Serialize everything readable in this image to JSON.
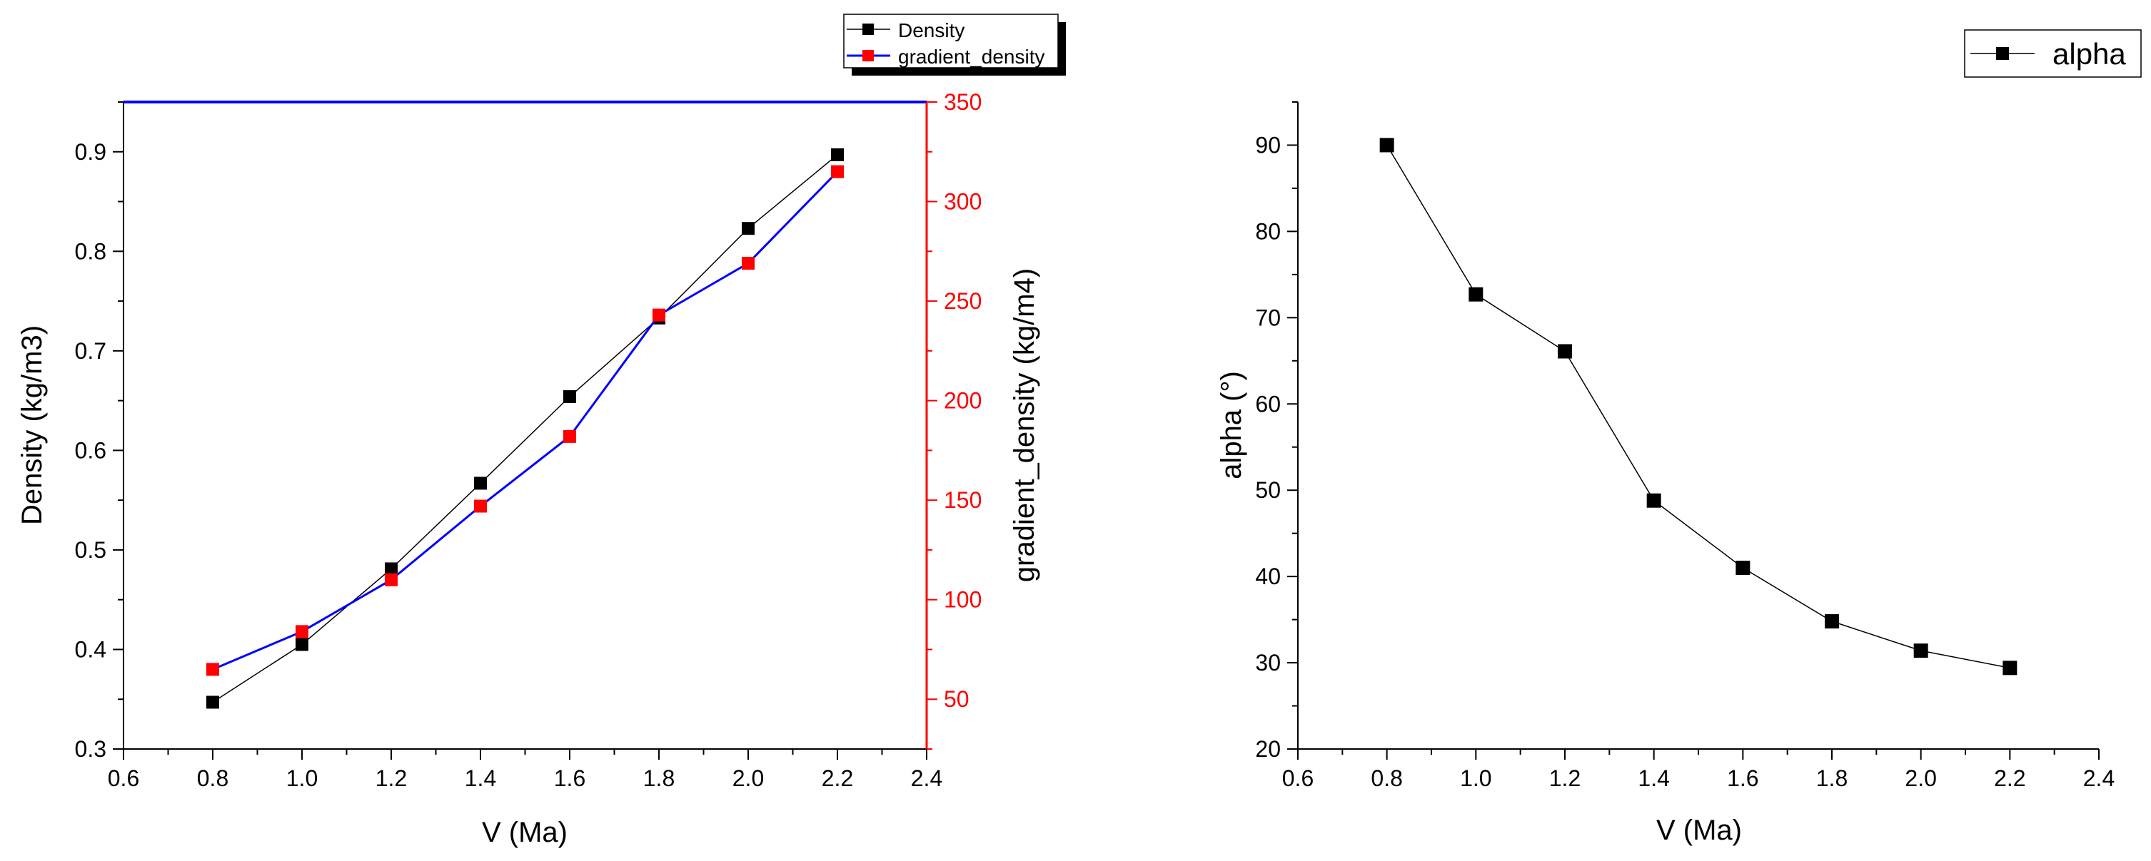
{
  "colors": {
    "black": "#000000",
    "red": "#ff0000",
    "blue": "#0000ff",
    "legend_shadow": "#000000"
  },
  "chart_data": [
    {
      "type": "line",
      "title": "",
      "xlabel": "V (Ma)",
      "ylabel": "Density (kg/m3)",
      "y2label": "gradient_density (kg/m4)",
      "xlim": [
        0.6,
        2.4
      ],
      "ylim": [
        0.3,
        0.95
      ],
      "y2lim": [
        25,
        350
      ],
      "xticks": [
        "0.6",
        "0.8",
        "1.0",
        "1.2",
        "1.4",
        "1.6",
        "1.8",
        "2.0",
        "2.2",
        "2.4"
      ],
      "yticks": [
        "0.3",
        "0.4",
        "0.5",
        "0.6",
        "0.7",
        "0.8",
        "0.9"
      ],
      "y2ticks": [
        "50",
        "100",
        "150",
        "200",
        "250",
        "300",
        "350"
      ],
      "legend_position": "top-right",
      "series": [
        {
          "name": "Density",
          "axis": "left",
          "x": [
            0.8,
            1.0,
            1.2,
            1.4,
            1.6,
            1.8,
            2.0,
            2.2
          ],
          "values": [
            0.347,
            0.405,
            0.481,
            0.567,
            0.654,
            0.733,
            0.823,
            0.897
          ]
        },
        {
          "name": "gradient_density",
          "axis": "right",
          "x": [
            0.8,
            1.0,
            1.2,
            1.4,
            1.6,
            1.8,
            2.0,
            2.2
          ],
          "values": [
            65,
            84,
            110,
            147,
            182,
            243,
            269,
            315
          ]
        }
      ]
    },
    {
      "type": "line",
      "title": "",
      "xlabel": "V (Ma)",
      "ylabel": "alpha (°)",
      "xlim": [
        0.6,
        2.4
      ],
      "ylim": [
        20,
        95
      ],
      "xticks": [
        "0.6",
        "0.8",
        "1.0",
        "1.2",
        "1.4",
        "1.6",
        "1.8",
        "2.0",
        "2.2",
        "2.4"
      ],
      "yticks": [
        "20",
        "30",
        "40",
        "50",
        "60",
        "70",
        "80",
        "90"
      ],
      "legend_position": "top-right",
      "series": [
        {
          "name": "alpha",
          "x": [
            0.8,
            1.0,
            1.2,
            1.4,
            1.6,
            1.8,
            2.0,
            2.2
          ],
          "values": [
            90,
            72.7,
            66.1,
            48.8,
            41,
            34.8,
            31.4,
            29.4
          ]
        }
      ]
    }
  ]
}
